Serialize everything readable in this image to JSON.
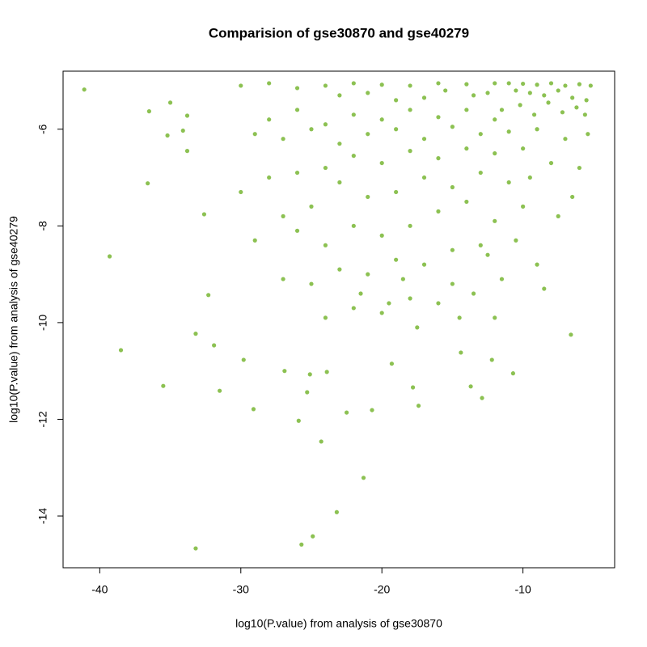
{
  "chart_data": {
    "type": "scatter",
    "title": "Comparision of gse30870 and gse40279",
    "x_label": "log10(P.value) from analysis of gse30870",
    "y_label": "log10(P.value) from analysis of gse40279",
    "color": "#8cc152",
    "xlim": [
      -42.6,
      -3.5
    ],
    "ylim": [
      -15.07,
      -4.8
    ],
    "xticks": [
      -40,
      -30,
      -20,
      -10
    ],
    "yticks": [
      -14,
      -12,
      -10,
      -8,
      -6
    ],
    "x": [
      -41.1,
      -39.3,
      -38.5,
      -35.5,
      -36.6,
      -33.2,
      -33.2,
      -31.9,
      -31.5,
      -29.8,
      -29.1,
      -25.7,
      -24.9,
      -23.2,
      -21.3,
      -24.3,
      -25.9,
      -22.5,
      -20.7,
      -17.4,
      -17.8,
      -13.7,
      -12.9,
      -10.7,
      -12.2,
      -14.4,
      -19.3,
      -6.6,
      -33.8,
      -36.5,
      -35.0,
      -33.8,
      -32.6,
      -32.3,
      -35.2,
      -34.1,
      -25.3,
      -25.1,
      -23.9,
      -26.9,
      -30,
      -28,
      -26,
      -24,
      -22,
      -20,
      -18,
      -16,
      -14,
      -12,
      -11,
      -10,
      -9,
      -8,
      -7,
      -6,
      -5.2,
      -10.5,
      -9.5,
      -8.5,
      -7.5,
      -6.5,
      -5.5,
      -12.5,
      -13.5,
      -15.5,
      -17,
      -19,
      -21,
      -23,
      -11.5,
      -10.2,
      -9.2,
      -8.2,
      -7.2,
      -6.2,
      -5.6,
      -12,
      -14,
      -16,
      -18,
      -20,
      -22,
      -24,
      -26,
      -28,
      -29,
      -27,
      -25,
      -23,
      -21,
      -19,
      -17,
      -15,
      -13,
      -11,
      -9,
      -7,
      -5.4,
      -10,
      -12,
      -14,
      -16,
      -18,
      -20,
      -22,
      -24,
      -26,
      -28,
      -30,
      -8,
      -6,
      -9.5,
      -11,
      -13,
      -15,
      -17,
      -19,
      -21,
      -23,
      -25,
      -27,
      -29,
      -6.5,
      -7.5,
      -10,
      -12,
      -14,
      -16,
      -18,
      -20,
      -22,
      -24,
      -26,
      -10.5,
      -12.5,
      -15,
      -17,
      -19,
      -21,
      -23,
      -25,
      -27,
      -8.5,
      -11.5,
      -13.5,
      -16,
      -18,
      -20,
      -22,
      -24,
      -14.5,
      -17.5,
      -19.5,
      -12,
      -9,
      -15,
      -21.5,
      -18.5,
      -13
    ],
    "values": [
      -5.18,
      -8.63,
      -10.57,
      -11.31,
      -7.12,
      -14.67,
      -10.23,
      -10.47,
      -11.41,
      -10.77,
      -11.79,
      -14.59,
      -14.42,
      -13.92,
      -13.21,
      -12.46,
      -12.03,
      -11.86,
      -11.81,
      -11.72,
      -11.34,
      -11.32,
      -11.56,
      -11.05,
      -10.77,
      -10.62,
      -10.85,
      -10.25,
      -5.72,
      -5.63,
      -5.45,
      -6.45,
      -7.76,
      -9.43,
      -6.13,
      -6.03,
      -11.44,
      -11.07,
      -11.02,
      -11.0,
      -5.1,
      -5.05,
      -5.15,
      -5.1,
      -5.05,
      -5.08,
      -5.1,
      -5.05,
      -5.07,
      -5.05,
      -5.05,
      -5.06,
      -5.08,
      -5.05,
      -5.1,
      -5.07,
      -5.1,
      -5.2,
      -5.25,
      -5.3,
      -5.2,
      -5.35,
      -5.4,
      -5.25,
      -5.3,
      -5.2,
      -5.35,
      -5.4,
      -5.25,
      -5.3,
      -5.6,
      -5.5,
      -5.7,
      -5.45,
      -5.65,
      -5.55,
      -5.7,
      -5.8,
      -5.6,
      -5.75,
      -5.6,
      -5.8,
      -5.7,
      -5.9,
      -5.6,
      -5.8,
      -6.1,
      -6.2,
      -6.0,
      -6.3,
      -6.1,
      -6.0,
      -6.2,
      -5.95,
      -6.1,
      -6.05,
      -6.0,
      -6.2,
      -6.1,
      -6.4,
      -6.5,
      -6.4,
      -6.6,
      -6.45,
      -6.7,
      -6.55,
      -6.8,
      -6.9,
      -7.0,
      -7.3,
      -6.7,
      -6.8,
      -7.0,
      -7.1,
      -6.9,
      -7.2,
      -7.0,
      -7.3,
      -7.4,
      -7.1,
      -7.6,
      -7.8,
      -8.3,
      -7.4,
      -7.8,
      -7.6,
      -7.9,
      -7.5,
      -7.7,
      -8.0,
      -8.2,
      -8.0,
      -8.4,
      -8.1,
      -8.3,
      -8.6,
      -8.5,
      -8.8,
      -8.7,
      -9.0,
      -8.9,
      -9.2,
      -9.1,
      -9.3,
      -9.1,
      -9.4,
      -9.6,
      -9.5,
      -9.8,
      -9.7,
      -9.9,
      -9.9,
      -10.1,
      -9.6,
      -9.9,
      -8.8,
      -9.2,
      -9.4,
      -9.1,
      -8.4
    ]
  }
}
